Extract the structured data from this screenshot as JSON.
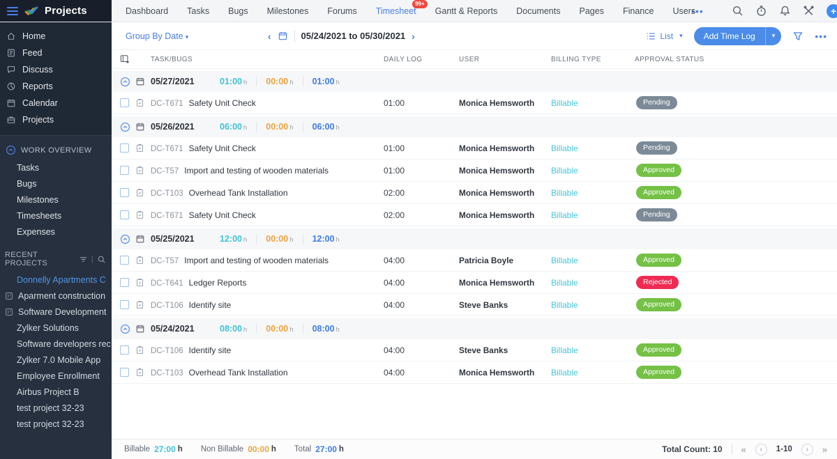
{
  "topnav": {
    "logo_text": "Projects",
    "active": "Timesheet",
    "items": [
      {
        "label": "Dashboard"
      },
      {
        "label": "Tasks"
      },
      {
        "label": "Bugs"
      },
      {
        "label": "Milestones"
      },
      {
        "label": "Forums"
      },
      {
        "label": "Timesheet",
        "badge": "99+"
      },
      {
        "label": "Gantt & Reports"
      },
      {
        "label": "Documents"
      },
      {
        "label": "Pages"
      },
      {
        "label": "Finance"
      },
      {
        "label": "Users"
      }
    ],
    "more_label": "•••"
  },
  "sidebar": {
    "main_items": [
      {
        "icon": "home",
        "label": "Home"
      },
      {
        "icon": "feed",
        "label": "Feed"
      },
      {
        "icon": "discuss",
        "label": "Discuss"
      },
      {
        "icon": "reports",
        "label": "Reports"
      },
      {
        "icon": "calendar",
        "label": "Calendar"
      },
      {
        "icon": "projects",
        "label": "Projects"
      }
    ],
    "work_overview": {
      "label": "WORK OVERVIEW",
      "items": [
        "Tasks",
        "Bugs",
        "Milestones",
        "Timesheets",
        "Expenses"
      ]
    },
    "recent": {
      "label": "RECENT PROJECTS",
      "items": [
        {
          "label": "Donnelly Apartments C",
          "active": true
        },
        {
          "label": "Aparment construction",
          "icon": true
        },
        {
          "label": "Software Development",
          "icon": true
        },
        {
          "label": "Zylker Solutions"
        },
        {
          "label": "Software developers rec"
        },
        {
          "label": "Zylker 7.0 Mobile App"
        },
        {
          "label": "Employee Enrollment"
        },
        {
          "label": "Airbus Project B"
        },
        {
          "label": "test project 32-23"
        },
        {
          "label": "test project 32-23"
        }
      ]
    }
  },
  "toolbar": {
    "group_by": "Group By Date",
    "date_range": "05/24/2021 to 05/30/2021",
    "view_label": "List",
    "add_button": "Add Time Log",
    "more_label": "•••"
  },
  "table": {
    "headers": [
      "TASK/BUGS",
      "DAILY LOG",
      "USER",
      "BILLING TYPE",
      "APPROVAL STATUS"
    ],
    "hour_suffix": "h",
    "groups": [
      {
        "date": "05/27/2021",
        "billable": "01:00",
        "non_billable": "00:00",
        "total": "01:00",
        "rows": [
          {
            "id": "DC-T671",
            "task": "Safety Unit Check",
            "log": "01:00",
            "user": "Monica Hemsworth",
            "billing": "Billable",
            "status": "Pending"
          }
        ]
      },
      {
        "date": "05/26/2021",
        "billable": "06:00",
        "non_billable": "00:00",
        "total": "06:00",
        "rows": [
          {
            "id": "DC-T671",
            "task": "Safety Unit Check",
            "log": "01:00",
            "user": "Monica Hemsworth",
            "billing": "Billable",
            "status": "Pending"
          },
          {
            "id": "DC-T57",
            "task": "Import and testing of wooden materials",
            "log": "01:00",
            "user": "Monica Hemsworth",
            "billing": "Billable",
            "status": "Approved"
          },
          {
            "id": "DC-T103",
            "task": "Overhead Tank Installation",
            "log": "02:00",
            "user": "Monica Hemsworth",
            "billing": "Billable",
            "status": "Approved"
          },
          {
            "id": "DC-T671",
            "task": "Safety Unit Check",
            "log": "02:00",
            "user": "Monica Hemsworth",
            "billing": "Billable",
            "status": "Pending"
          }
        ]
      },
      {
        "date": "05/25/2021",
        "billable": "12:00",
        "non_billable": "00:00",
        "total": "12:00",
        "rows": [
          {
            "id": "DC-T57",
            "task": "Import and testing of wooden materials",
            "log": "04:00",
            "user": "Patricia Boyle",
            "billing": "Billable",
            "status": "Approved"
          },
          {
            "id": "DC-T641",
            "task": "Ledger Reports",
            "log": "04:00",
            "user": "Monica Hemsworth",
            "billing": "Billable",
            "status": "Rejected"
          },
          {
            "id": "DC-T106",
            "task": "Identify site",
            "log": "04:00",
            "user": "Steve Banks",
            "billing": "Billable",
            "status": "Approved"
          }
        ]
      },
      {
        "date": "05/24/2021",
        "billable": "08:00",
        "non_billable": "00:00",
        "total": "08:00",
        "rows": [
          {
            "id": "DC-T106",
            "task": "Identify site",
            "log": "04:00",
            "user": "Steve Banks",
            "billing": "Billable",
            "status": "Approved"
          },
          {
            "id": "DC-T103",
            "task": "Overhead Tank Installation",
            "log": "04:00",
            "user": "Monica Hemsworth",
            "billing": "Billable",
            "status": "Approved"
          }
        ]
      }
    ]
  },
  "footer": {
    "billable_label": "Billable",
    "billable_value": "27:00",
    "non_billable_label": "Non Billable",
    "non_billable_value": "00:00",
    "total_label": "Total",
    "total_value": "27:00",
    "hour_suffix": "h",
    "count_label": "Total Count: 10",
    "page_range": "1-10"
  },
  "colors": {
    "accent_blue": "#4a7fe8",
    "teal": "#3ec3d7",
    "orange": "#f2a33c",
    "badge_green": "#74c145",
    "badge_red": "#ef2b52",
    "badge_gray": "#7c8a97",
    "nav_badge_red": "#f0483e",
    "sidebar_bg": "#27303f",
    "sidebar_top_bg": "#1f2835"
  }
}
